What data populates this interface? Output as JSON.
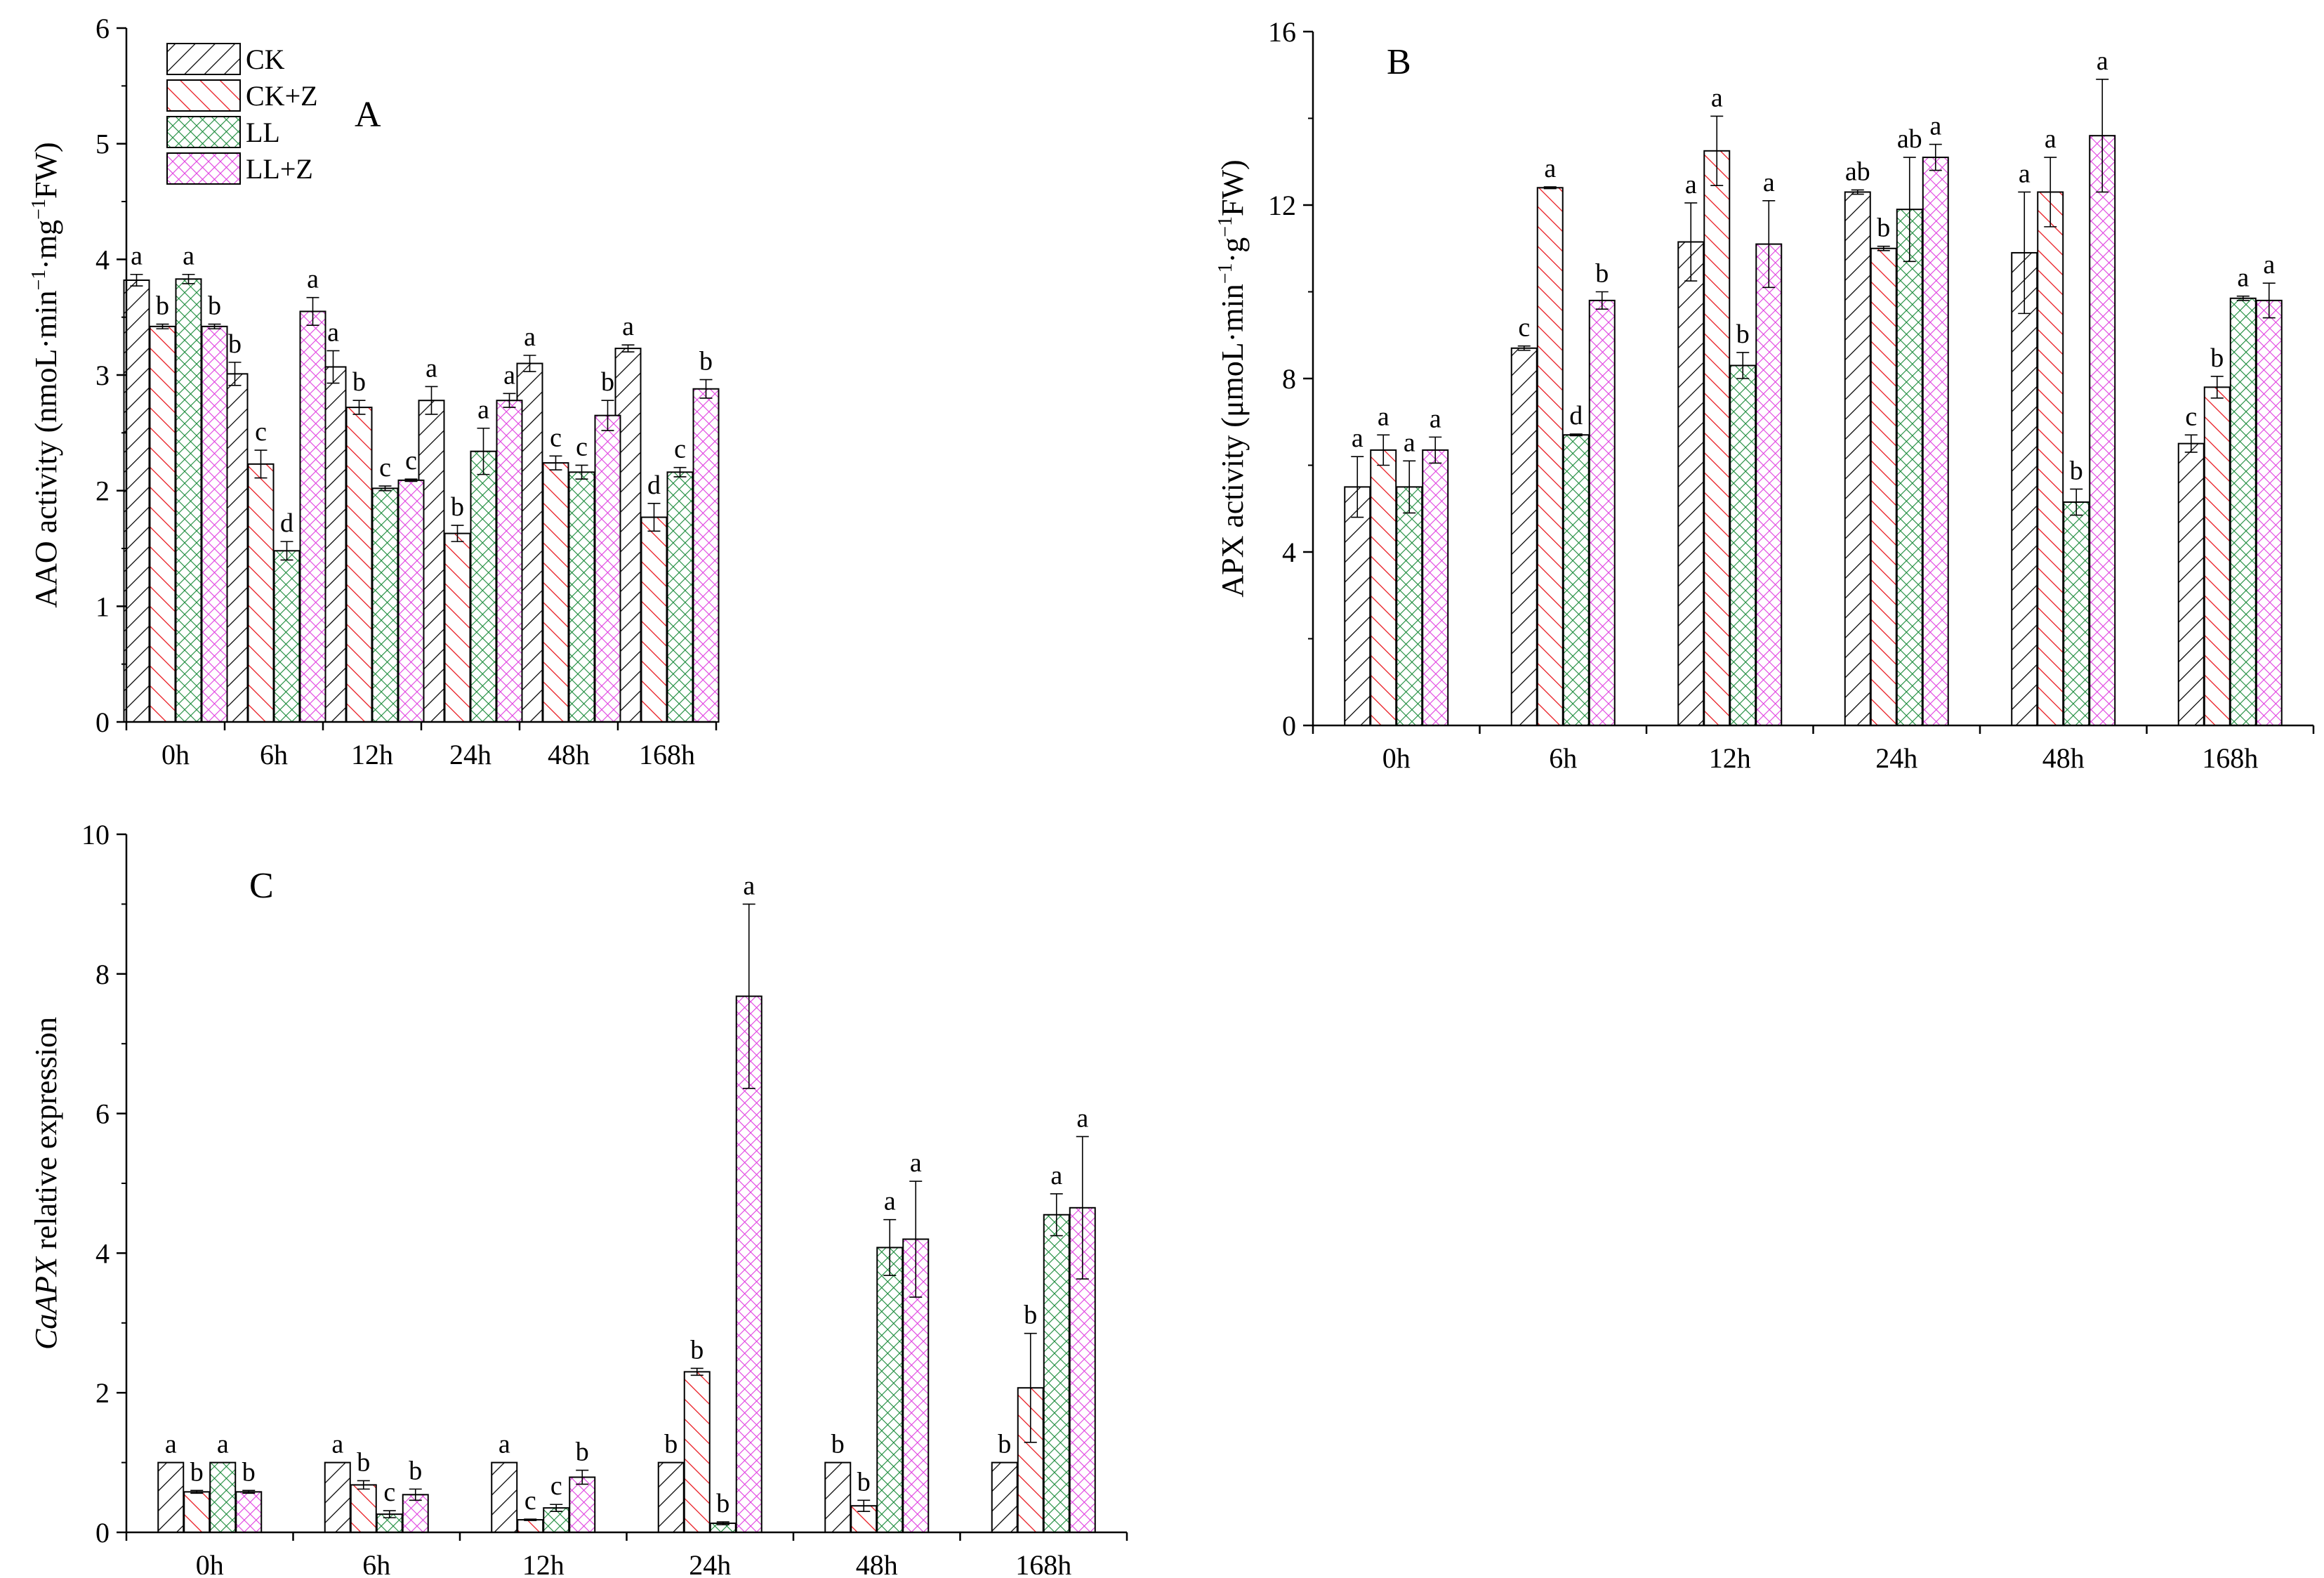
{
  "legend": {
    "items": [
      {
        "label": "CK",
        "pattern": "diag",
        "color": "#000000"
      },
      {
        "label": "CK+Z",
        "pattern": "antidiag",
        "color": "#e8141b"
      },
      {
        "label": "LL",
        "pattern": "cross",
        "color": "#1a8a3a"
      },
      {
        "label": "LL+Z",
        "pattern": "cross",
        "color": "#e040e0"
      }
    ]
  },
  "chart_data": [
    {
      "panel": "A",
      "type": "bar",
      "categories": [
        "0h",
        "6h",
        "12h",
        "24h",
        "48h",
        "168h"
      ],
      "ylabel_parts": {
        "pre": "AAO activity (nmoL·min",
        "sup1": "−1",
        "mid": "·mg",
        "sup2": "−1",
        "post": "FW)"
      },
      "ylim": [
        0,
        6
      ],
      "yticks": [
        "0",
        "1",
        "2",
        "3",
        "4",
        "5",
        "6"
      ],
      "series": [
        {
          "name": "CK",
          "values": [
            3.82,
            3.01,
            3.07,
            2.78,
            3.1,
            3.23
          ],
          "errors": [
            0.05,
            0.1,
            0.14,
            0.12,
            0.07,
            0.03
          ],
          "letters": [
            "a",
            "b",
            "a",
            "a",
            "a",
            "a"
          ]
        },
        {
          "name": "CK+Z",
          "values": [
            3.42,
            2.23,
            2.72,
            1.63,
            2.24,
            1.77
          ],
          "errors": [
            0.02,
            0.12,
            0.06,
            0.07,
            0.06,
            0.12
          ],
          "letters": [
            "b",
            "c",
            "b",
            "b",
            "c",
            "d"
          ]
        },
        {
          "name": "LL",
          "values": [
            3.83,
            1.48,
            2.02,
            2.34,
            2.16,
            2.16
          ],
          "errors": [
            0.04,
            0.08,
            0.02,
            0.2,
            0.06,
            0.04
          ],
          "letters": [
            "a",
            "d",
            "c",
            "a",
            "c",
            "c"
          ]
        },
        {
          "name": "LL+Z",
          "values": [
            3.42,
            3.55,
            2.09,
            2.78,
            2.65,
            2.88
          ],
          "errors": [
            0.02,
            0.12,
            0.01,
            0.06,
            0.13,
            0.08
          ],
          "letters": [
            "b",
            "a",
            "c",
            "a",
            "b",
            "b"
          ]
        }
      ]
    },
    {
      "panel": "B",
      "type": "bar",
      "categories": [
        "0h",
        "6h",
        "12h",
        "24h",
        "48h",
        "168h"
      ],
      "ylabel_parts": {
        "pre": "APX activity (μmoL·min",
        "sup1": "−1",
        "mid": "·g",
        "sup2": "−1",
        "post": "FW)"
      },
      "ylim": [
        0,
        16
      ],
      "yticks": [
        "0",
        "4",
        "8",
        "12",
        "16"
      ],
      "series": [
        {
          "name": "CK",
          "values": [
            5.5,
            8.7,
            11.15,
            12.3,
            10.9,
            6.5
          ],
          "errors": [
            0.7,
            0.05,
            0.9,
            0.05,
            1.4,
            0.2
          ],
          "letters": [
            "a",
            "c",
            "a",
            "ab",
            "a",
            "c"
          ]
        },
        {
          "name": "CK+Z",
          "values": [
            6.35,
            12.4,
            13.25,
            11.0,
            12.3,
            7.8
          ],
          "errors": [
            0.35,
            0.02,
            0.8,
            0.05,
            0.8,
            0.25
          ],
          "letters": [
            "a",
            "a",
            "a",
            "b",
            "a",
            "b"
          ]
        },
        {
          "name": "LL",
          "values": [
            5.5,
            6.7,
            8.3,
            11.9,
            5.15,
            9.85
          ],
          "errors": [
            0.6,
            0.02,
            0.3,
            1.2,
            0.3,
            0.05
          ],
          "letters": [
            "a",
            "d",
            "b",
            "ab",
            "b",
            "a"
          ]
        },
        {
          "name": "LL+Z",
          "values": [
            6.35,
            9.8,
            11.1,
            13.1,
            13.6,
            9.8
          ],
          "errors": [
            0.3,
            0.2,
            1.0,
            0.3,
            1.3,
            0.4
          ],
          "letters": [
            "a",
            "b",
            "a",
            "a",
            "a",
            "a"
          ]
        }
      ]
    },
    {
      "panel": "C",
      "type": "bar",
      "categories": [
        "0h",
        "6h",
        "12h",
        "24h",
        "48h",
        "168h"
      ],
      "ylabel_parts": {
        "italic": "CaAPX",
        "rest": " relative expression"
      },
      "ylim": [
        0,
        10
      ],
      "yticks": [
        "0",
        "2",
        "4",
        "6",
        "8",
        "10"
      ],
      "series": [
        {
          "name": "CK",
          "values": [
            1.0,
            1.0,
            1.0,
            1.0,
            1.0,
            1.0
          ],
          "errors": [
            0,
            0,
            0,
            0,
            0,
            0
          ],
          "letters": [
            "a",
            "a",
            "a",
            "b",
            "b",
            "b"
          ]
        },
        {
          "name": "CK+Z",
          "values": [
            0.58,
            0.68,
            0.18,
            2.3,
            0.38,
            2.07
          ],
          "errors": [
            0.02,
            0.06,
            0.01,
            0.05,
            0.08,
            0.78
          ],
          "letters": [
            "b",
            "b",
            "c",
            "b",
            "b",
            "b"
          ]
        },
        {
          "name": "LL",
          "values": [
            1.0,
            0.26,
            0.35,
            0.13,
            4.08,
            4.55
          ],
          "errors": [
            0,
            0.05,
            0.05,
            0.02,
            0.4,
            0.3
          ],
          "letters": [
            "a",
            "c",
            "c",
            "b",
            "a",
            "a"
          ]
        },
        {
          "name": "LL+Z",
          "values": [
            0.58,
            0.54,
            0.79,
            7.68,
            4.2,
            4.65
          ],
          "errors": [
            0.02,
            0.08,
            0.1,
            1.32,
            0.83,
            1.02
          ],
          "letters": [
            "b",
            "b",
            "b",
            "a",
            "a",
            "a"
          ]
        }
      ]
    }
  ]
}
